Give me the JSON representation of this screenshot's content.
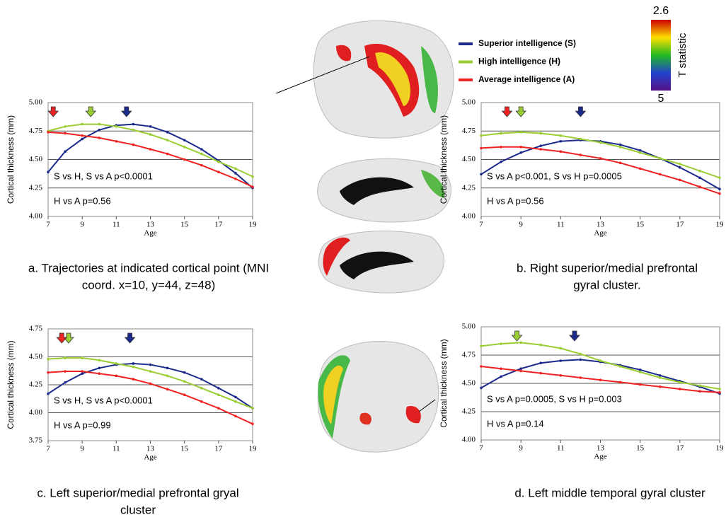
{
  "chart_data": [
    {
      "type": "line",
      "caption": [
        "a. Trajectories at indicated cortical point (MNI",
        "coord. x=10, y=44, z=48)"
      ],
      "x_label": "Age",
      "y_label": "Cortical thickness (mm)",
      "x": [
        7,
        8,
        9,
        10,
        11,
        12,
        13,
        14,
        15,
        16,
        17,
        18,
        19
      ],
      "xlim": [
        7,
        19
      ],
      "xticks": [
        7,
        9,
        11,
        13,
        15,
        17,
        19
      ],
      "ylim": [
        4.0,
        5.0
      ],
      "yticks": [
        {
          "value": 4.0,
          "label": "4.00"
        },
        {
          "value": 4.25,
          "label": "4.25"
        },
        {
          "value": 4.5,
          "label": "4.50"
        },
        {
          "value": 4.75,
          "label": "4.75"
        },
        {
          "value": 5.0,
          "label": "5.00"
        }
      ],
      "grid": true,
      "annotations": [
        "S vs H, S vs A p<0.0001",
        "H vs A p=0.56"
      ],
      "series": [
        {
          "name": "Superior intelligence (S)",
          "color": "#1c2a8c",
          "peak": 11.6,
          "values": [
            4.39,
            4.57,
            4.68,
            4.76,
            4.8,
            4.81,
            4.79,
            4.74,
            4.67,
            4.59,
            4.49,
            4.38,
            4.25
          ]
        },
        {
          "name": "High intelligence (H)",
          "color": "#9acd32",
          "peak": 9.5,
          "values": [
            4.75,
            4.79,
            4.81,
            4.81,
            4.79,
            4.76,
            4.72,
            4.67,
            4.61,
            4.55,
            4.48,
            4.42,
            4.35
          ]
        },
        {
          "name": "Average intelligence (A)",
          "color": "#ee2222",
          "peak": 7.3,
          "values": [
            4.74,
            4.73,
            4.71,
            4.69,
            4.66,
            4.63,
            4.59,
            4.55,
            4.5,
            4.45,
            4.39,
            4.33,
            4.26
          ]
        }
      ]
    },
    {
      "type": "line",
      "caption": [
        "b. Right superior/medial prefrontal",
        "gyral cluster."
      ],
      "x_label": "Age",
      "y_label": "Cortical thickness (mm)",
      "x": [
        7,
        8,
        9,
        10,
        11,
        12,
        13,
        14,
        15,
        16,
        17,
        18,
        19
      ],
      "xlim": [
        7,
        19
      ],
      "xticks": [
        7,
        9,
        11,
        13,
        15,
        17,
        19
      ],
      "ylim": [
        4.0,
        5.0
      ],
      "yticks": [
        {
          "value": 4.0,
          "label": "4.00"
        },
        {
          "value": 4.25,
          "label": "4.25"
        },
        {
          "value": 4.5,
          "label": "4.50"
        },
        {
          "value": 4.75,
          "label": "4.75"
        },
        {
          "value": 5.0,
          "label": "5.00"
        }
      ],
      "grid": true,
      "annotations": [
        "S vs A p<0.001, S vs H p=0.0005",
        "H vs A p=0.56"
      ],
      "series": [
        {
          "color": "#1c2a8c",
          "peak": 12.0,
          "values": [
            4.37,
            4.48,
            4.56,
            4.62,
            4.66,
            4.67,
            4.66,
            4.63,
            4.58,
            4.51,
            4.43,
            4.34,
            4.24
          ]
        },
        {
          "color": "#9acd32",
          "peak": 9.0,
          "values": [
            4.71,
            4.73,
            4.74,
            4.73,
            4.71,
            4.68,
            4.65,
            4.61,
            4.56,
            4.51,
            4.46,
            4.4,
            4.34
          ]
        },
        {
          "color": "#ee2222",
          "peak": 8.3,
          "values": [
            4.6,
            4.61,
            4.61,
            4.59,
            4.57,
            4.54,
            4.51,
            4.47,
            4.42,
            4.37,
            4.32,
            4.26,
            4.2
          ]
        }
      ]
    },
    {
      "type": "line",
      "caption": [
        "c. Left superior/medial prefrontal gryal",
        "cluster"
      ],
      "x_label": "Age",
      "y_label": "Cortical thickness (mm)",
      "x": [
        7,
        8,
        9,
        10,
        11,
        12,
        13,
        14,
        15,
        16,
        17,
        18,
        19
      ],
      "xlim": [
        7,
        19
      ],
      "xticks": [
        7,
        9,
        11,
        13,
        15,
        17,
        19
      ],
      "ylim": [
        3.75,
        4.75
      ],
      "yticks": [
        {
          "value": 3.75,
          "label": "3.75"
        },
        {
          "value": 4.0,
          "label": "4.00"
        },
        {
          "value": 4.25,
          "label": "4.25"
        },
        {
          "value": 4.5,
          "label": "4.50"
        },
        {
          "value": 4.75,
          "label": "4.75"
        }
      ],
      "grid": true,
      "annotations": [
        "S vs H, S vs A p<0.0001",
        "H vs A p=0.99"
      ],
      "series": [
        {
          "color": "#1c2a8c",
          "peak": 11.8,
          "values": [
            4.17,
            4.27,
            4.35,
            4.4,
            4.43,
            4.44,
            4.43,
            4.4,
            4.36,
            4.3,
            4.22,
            4.14,
            4.04
          ]
        },
        {
          "color": "#9acd32",
          "peak": 8.2,
          "values": [
            4.48,
            4.49,
            4.49,
            4.47,
            4.44,
            4.41,
            4.37,
            4.33,
            4.28,
            4.22,
            4.16,
            4.1,
            4.04
          ]
        },
        {
          "color": "#ee2222",
          "peak": 7.8,
          "values": [
            4.36,
            4.37,
            4.37,
            4.35,
            4.33,
            4.3,
            4.26,
            4.21,
            4.16,
            4.1,
            4.04,
            3.97,
            3.9
          ]
        }
      ]
    },
    {
      "type": "line",
      "caption": [
        "d. Left middle temporal gyral cluster"
      ],
      "x_label": "Age",
      "y_label": "Cortical thickness (mm)",
      "x": [
        7,
        8,
        9,
        10,
        11,
        12,
        13,
        14,
        15,
        16,
        17,
        18,
        19
      ],
      "xlim": [
        7,
        19
      ],
      "xticks": [
        7,
        9,
        11,
        13,
        15,
        17,
        19
      ],
      "ylim": [
        4.0,
        5.0
      ],
      "yticks": [
        {
          "value": 4.0,
          "label": "4.00"
        },
        {
          "value": 4.25,
          "label": "4.25"
        },
        {
          "value": 4.5,
          "label": "4.50"
        },
        {
          "value": 4.75,
          "label": "4.75"
        },
        {
          "value": 5.0,
          "label": "5.00"
        }
      ],
      "grid": true,
      "annotations": [
        "S vs A p=0.0005, S vs H  p=0.003",
        "H vs A p=0.14"
      ],
      "series": [
        {
          "color": "#1c2a8c",
          "peak": 11.7,
          "values": [
            4.46,
            4.56,
            4.63,
            4.68,
            4.7,
            4.71,
            4.69,
            4.66,
            4.62,
            4.57,
            4.52,
            4.47,
            4.41
          ]
        },
        {
          "color": "#9acd32",
          "peak": 8.8,
          "values": [
            4.83,
            4.85,
            4.86,
            4.84,
            4.81,
            4.76,
            4.7,
            4.65,
            4.6,
            4.55,
            4.51,
            4.48,
            4.45
          ]
        },
        {
          "color": "#ee2222",
          "values": [
            4.65,
            4.63,
            4.61,
            4.59,
            4.57,
            4.55,
            4.53,
            4.51,
            4.49,
            4.47,
            4.45,
            4.43,
            4.42
          ]
        }
      ]
    }
  ],
  "colorbar": {
    "title": "T statistic",
    "top": 2.6,
    "bottom": 5
  }
}
